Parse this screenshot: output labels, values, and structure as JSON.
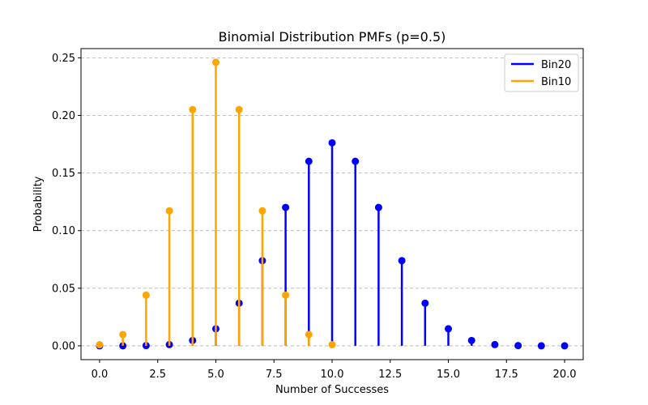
{
  "chart_data": {
    "type": "stem",
    "title": "Binomial Distribution PMFs (p=0.5)",
    "xlabel": "Number of Successes",
    "ylabel": "Probability",
    "xlim": [
      -0.8,
      20.8
    ],
    "ylim": [
      -0.012,
      0.258
    ],
    "xticks": [
      0.0,
      2.5,
      5.0,
      7.5,
      10.0,
      12.5,
      15.0,
      17.5,
      20.0
    ],
    "xtick_labels": [
      "0.0",
      "2.5",
      "5.0",
      "7.5",
      "10.0",
      "12.5",
      "15.0",
      "17.5",
      "20.0"
    ],
    "yticks": [
      0.0,
      0.05,
      0.1,
      0.15,
      0.2,
      0.25
    ],
    "ytick_labels": [
      "0.00",
      "0.05",
      "0.10",
      "0.15",
      "0.20",
      "0.25"
    ],
    "grid": "y-dashed",
    "legend_position": "top-right",
    "series": [
      {
        "name": "Bin20",
        "color": "#0000ff",
        "x": [
          0,
          1,
          2,
          3,
          4,
          5,
          6,
          7,
          8,
          9,
          10,
          11,
          12,
          13,
          14,
          15,
          16,
          17,
          18,
          19,
          20
        ],
        "values": [
          1e-06,
          1.9e-05,
          0.000181,
          0.001087,
          0.004621,
          0.014786,
          0.036964,
          0.073929,
          0.120134,
          0.160179,
          0.176197,
          0.160179,
          0.120134,
          0.073929,
          0.036964,
          0.014786,
          0.004621,
          0.001087,
          0.000181,
          1.9e-05,
          1e-06
        ]
      },
      {
        "name": "Bin10",
        "color": "#ffa500",
        "x": [
          0,
          1,
          2,
          3,
          4,
          5,
          6,
          7,
          8,
          9,
          10
        ],
        "values": [
          0.000977,
          0.009766,
          0.043945,
          0.117188,
          0.205078,
          0.246094,
          0.205078,
          0.117188,
          0.043945,
          0.009766,
          0.000977
        ]
      }
    ]
  }
}
